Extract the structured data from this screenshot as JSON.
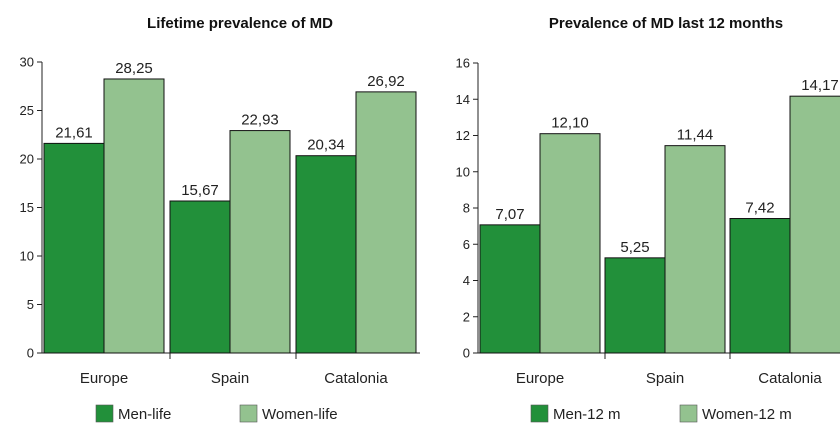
{
  "chart_data": [
    {
      "type": "bar",
      "title": "Lifetime prevalence of MD",
      "categories": [
        "Europe",
        "Spain",
        "Catalonia"
      ],
      "series": [
        {
          "name": "Men-life",
          "values": [
            21.61,
            15.67,
            20.34
          ],
          "labels": [
            "21,61",
            "15,67",
            "20,34"
          ],
          "color": "#22903a"
        },
        {
          "name": "Women-life",
          "values": [
            28.25,
            22.93,
            26.92
          ],
          "labels": [
            "28,25",
            "22,93",
            "26,92"
          ],
          "color": "#93c28f"
        }
      ],
      "ylim": [
        0,
        30
      ],
      "yticks": [
        0,
        5,
        10,
        15,
        20,
        25,
        30
      ],
      "xlabel": "",
      "ylabel": "",
      "grid": false,
      "legend": "bottom"
    },
    {
      "type": "bar",
      "title": "Prevalence of MD last 12 months",
      "categories": [
        "Europe",
        "Spain",
        "Catalonia"
      ],
      "series": [
        {
          "name": "Men-12 m",
          "values": [
            7.07,
            5.25,
            7.42
          ],
          "labels": [
            "7,07",
            "5,25",
            "7,42"
          ],
          "color": "#22903a"
        },
        {
          "name": "Women-12 m",
          "values": [
            12.1,
            11.44,
            14.17
          ],
          "labels": [
            "12,10",
            "11,44",
            "14,17"
          ],
          "color": "#93c28f"
        }
      ],
      "ylim": [
        0,
        16
      ],
      "yticks": [
        0,
        2,
        4,
        6,
        8,
        10,
        12,
        14,
        16
      ],
      "xlabel": "",
      "ylabel": "",
      "grid": false,
      "legend": "bottom"
    }
  ]
}
